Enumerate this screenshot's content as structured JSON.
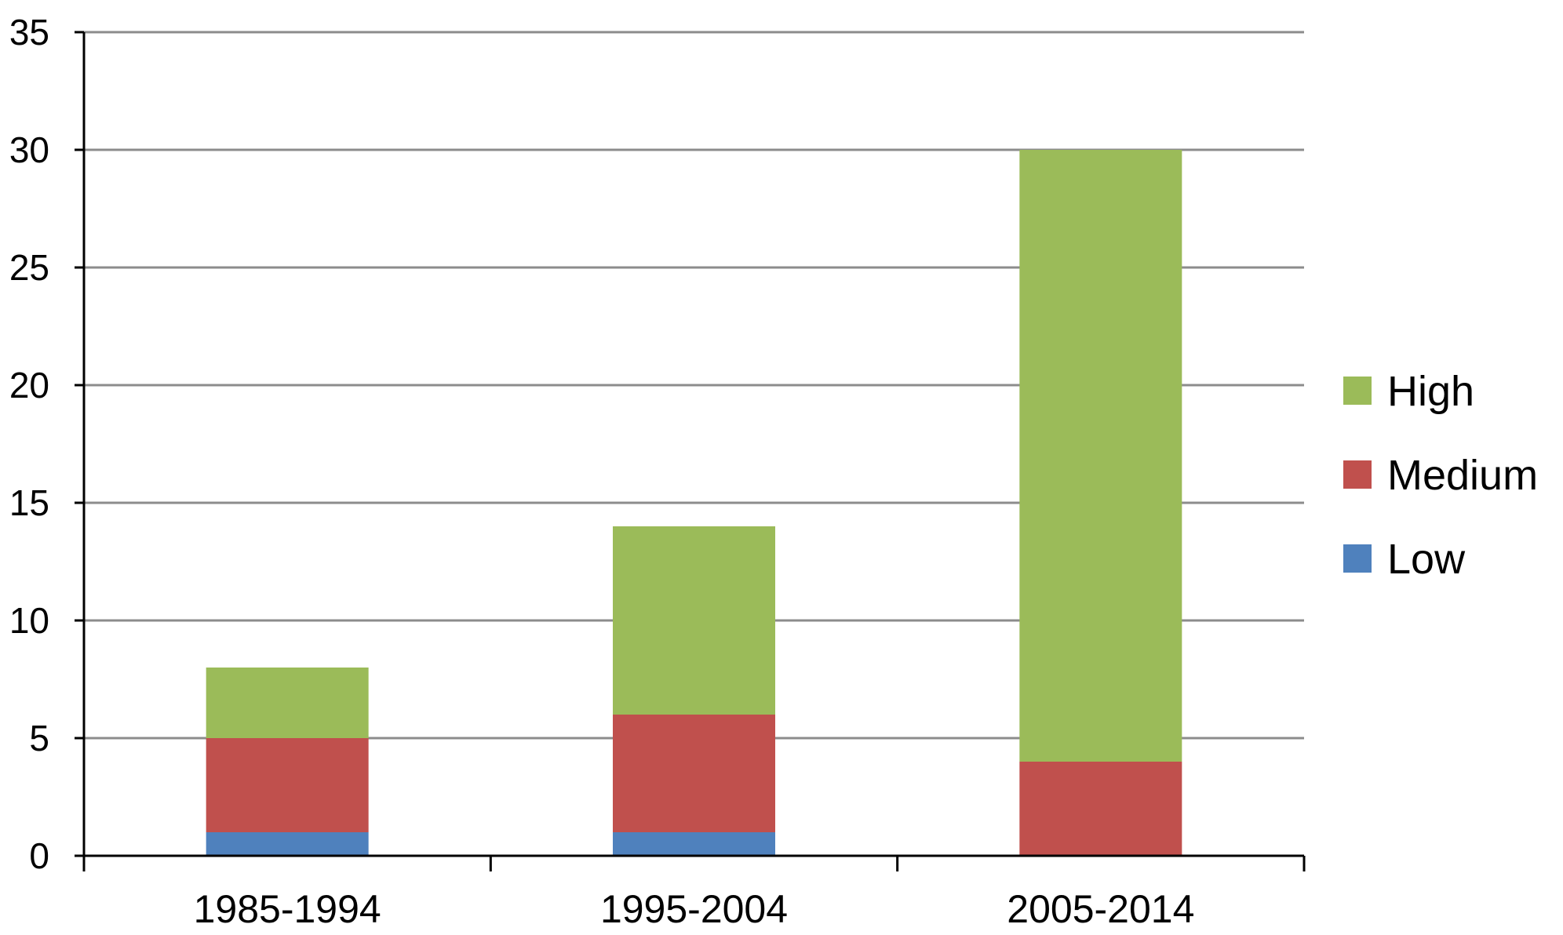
{
  "chart_data": {
    "type": "bar",
    "stacked": true,
    "categories": [
      "1985-1994",
      "1995-2004",
      "2005-2014"
    ],
    "series": [
      {
        "name": "Low",
        "values": [
          1,
          1,
          0
        ],
        "color": "#4F81BD"
      },
      {
        "name": "Medium",
        "values": [
          4,
          5,
          4
        ],
        "color": "#C0504D"
      },
      {
        "name": "High",
        "values": [
          3,
          8,
          26
        ],
        "color": "#9BBB59"
      }
    ],
    "legend_order": [
      "High",
      "Medium",
      "Low"
    ],
    "title": "",
    "xlabel": "",
    "ylabel": "",
    "ylim": [
      0,
      35
    ],
    "yticks": [
      "0",
      "5",
      "10",
      "15",
      "20",
      "25",
      "30",
      "35"
    ],
    "grid": true,
    "legend_position": "right"
  }
}
